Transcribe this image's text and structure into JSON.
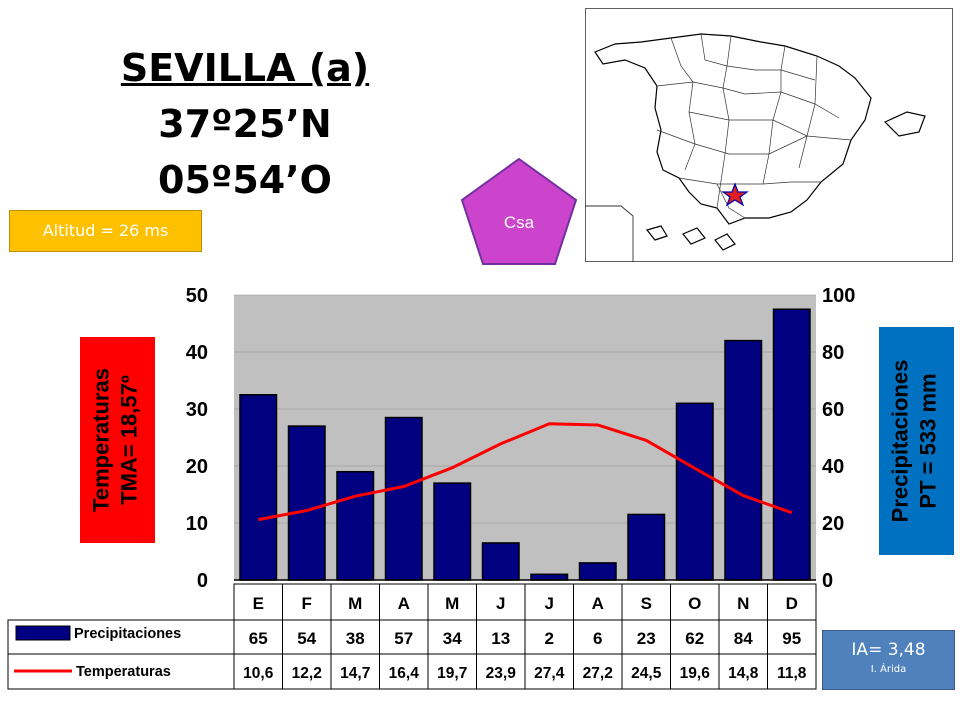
{
  "station": {
    "title": "SEVILLA (a)",
    "latitude": "37º25’N",
    "longitude": "05º54’O",
    "altitude": "Altitud = 26 ms",
    "climate_code": "Csa",
    "aridity_index": "IA= 3,48",
    "aridity_label": "I. Árida"
  },
  "chart_data": {
    "type": "bar",
    "categories": [
      "E",
      "F",
      "M",
      "A",
      "M",
      "J",
      "J",
      "A",
      "S",
      "O",
      "N",
      "D"
    ],
    "series": [
      {
        "name": "Precipitaciones",
        "chart": "bar",
        "axis": "right",
        "color": "#000080",
        "values": [
          65,
          54,
          38,
          57,
          34,
          13,
          2,
          6,
          23,
          62,
          84,
          95
        ]
      },
      {
        "name": "Temperaturas",
        "chart": "line",
        "axis": "left",
        "color": "#ff0000",
        "values": [
          10.6,
          12.2,
          14.7,
          16.4,
          19.7,
          23.9,
          27.4,
          27.2,
          24.5,
          19.6,
          14.8,
          11.8
        ]
      }
    ],
    "table_precip": [
      "65",
      "54",
      "38",
      "57",
      "34",
      "13",
      "2",
      "6",
      "23",
      "62",
      "84",
      "95"
    ],
    "table_temp": [
      "10,6",
      "12,2",
      "14,7",
      "16,4",
      "19,7",
      "23,9",
      "27,4",
      "27,2",
      "24,5",
      "19,6",
      "14,8",
      "11,8"
    ],
    "ylabel_left": [
      "Temperaturas",
      "TMA= 18,57º"
    ],
    "ylabel_right": [
      "Precipitaciones",
      "PT = 533 mm"
    ],
    "left_ticks": [
      "0",
      "10",
      "20",
      "30",
      "40",
      "50"
    ],
    "right_ticks": [
      "0",
      "20",
      "40",
      "60",
      "80",
      "100"
    ],
    "ylim_left": [
      0,
      50
    ],
    "ylim_right": [
      0,
      100
    ],
    "left_color": "#ff0000",
    "right_color": "#0070c0",
    "plot_bg": "#c0c0c0"
  }
}
